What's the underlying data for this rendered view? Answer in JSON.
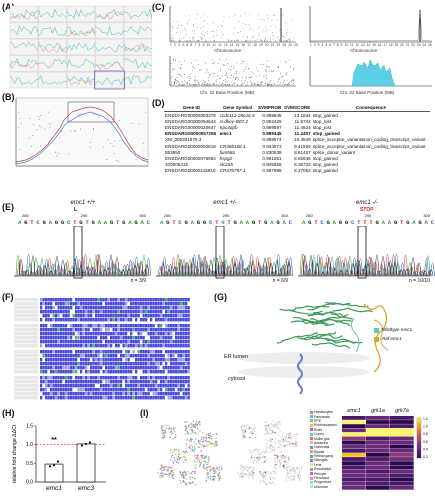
{
  "panels": {
    "a": "(A)",
    "b": "(B)",
    "c": "(C)",
    "d": "(D)",
    "e": "(E)",
    "f": "(F)",
    "g": "(G)",
    "h": "(H)",
    "i": "(I)"
  },
  "panel_c": {
    "x_label_top": "Chromosome",
    "x_label_bottom": "Chr. 22 Base Position (MB)",
    "y_label_left": "EE⁶",
    "y_label_right": "EE⁶ (Loess fit)",
    "chromosomes": [
      "1",
      "2",
      "3",
      "4",
      "5",
      "6",
      "7",
      "8",
      "9",
      "10",
      "11",
      "12",
      "13",
      "14",
      "15",
      "16",
      "17",
      "18",
      "19",
      "20",
      "21",
      "22",
      "23",
      "24",
      "25"
    ],
    "bottom_ticks": [
      "10",
      "20",
      "30",
      "40"
    ],
    "left_y_ticks": [
      "0.6",
      "0.4",
      "0.2",
      "0"
    ],
    "right_y_ticks": [
      "0.1",
      "0"
    ]
  },
  "panel_d": {
    "headers": [
      "Gene ID",
      "Gene Symbol",
      "SVMPROB",
      "SVMSCORE",
      "Consequence"
    ],
    "rows": [
      [
        "ENSDARG00000093376",
        "ccdc112-28e16.5",
        "0.989845",
        "13.1834",
        "stop_gained"
      ],
      [
        "ENSDARG00000094644",
        "si:dkey-68l7.2",
        "0.992429",
        "11.9742",
        "stop_lost"
      ],
      [
        "ENSDARG00000020647",
        "trpc4apb",
        "0.989597",
        "11.4624",
        "stop_lost"
      ],
      [
        "ENSDARG00000057255",
        "emc1",
        "0.989445",
        "11.2407",
        "stop_gained"
      ],
      [
        "XM_009301879.3",
        "",
        "0.989574",
        "10.4549",
        "splice_acceptor_variant&non_coding_transcript_variant"
      ],
      [
        "ENSDARG00000092818",
        "CR388168.1",
        "0.934973",
        "9.41926",
        "splice_acceptor_variant&non_coding_transcript_variant"
      ],
      [
        "553650",
        "fam58a",
        "0.830539",
        "8.81457",
        "splice_donor_variant"
      ],
      [
        "ENSDARG00000076564",
        "hspg2",
        "0.991561",
        "8.65646",
        "stop_gained"
      ],
      [
        "100006415",
        "slc2a5",
        "0.945658",
        "8.35733",
        "stop_gained"
      ],
      [
        "ENSDARG00000115810",
        "CR376797.1",
        "0.987886",
        "8.27052",
        "stop_gained"
      ]
    ],
    "highlight_row": 3
  },
  "panel_e": {
    "genotypes": [
      "emc1 +/+",
      "emc1 +/-",
      "emc1 -/-"
    ],
    "seq_wt": "AGTCGAGGCT G TGAAGTGAGAC",
    "seq_het": "AGTCGAGGCT N TGAAGTGAGAC",
    "seq_hom": "AGTCGAGGCT T TGAAGTGAGAC",
    "pos_labels": [
      "280",
      "290",
      "300"
    ],
    "aa_wt": "L",
    "aa_mut": "STOP",
    "counts": [
      "n = 3/9",
      "n = 6/9",
      "n = 10/10"
    ]
  },
  "panel_g": {
    "legend": [
      "Wildtype emc1",
      "Raf emc1"
    ],
    "legend_colors": [
      "#6cc3a6",
      "#d4a738"
    ],
    "labels": [
      "ER lumen",
      "cytosol"
    ]
  },
  "panel_i": {
    "clusters": [
      "Hepatocytes",
      "Pancreatic",
      "RPE",
      "Photoreceptors",
      "Rods",
      "Cones",
      "Muller glia",
      "Amacrine",
      "Horizontal",
      "Bipolar",
      "Retinal gang.",
      "Microglia",
      "Lens",
      "Endothelial",
      "Pericyte",
      "Fibroblast",
      "Progenitors",
      "Unknown"
    ],
    "genes": [
      "emc1",
      "grk1a",
      "grk7a"
    ],
    "colorbar_ticks": [
      "1.2",
      "1.0",
      "0.8",
      "0.6",
      "0.4",
      "0.2"
    ]
  },
  "chart_data": [
    {
      "type": "bar",
      "panel": "H",
      "categories": [
        "emc1",
        "emc3"
      ],
      "values": [
        0.48,
        1.02
      ],
      "ylabel": "relative fold change ΔΔCt",
      "yticks": [
        "1.5",
        "1.0",
        "0.5",
        "0.0"
      ],
      "ylim": [
        0,
        1.5
      ],
      "reference_line": 1.0,
      "annotation": "**",
      "points": [
        [
          0.42,
          0.45,
          0.55
        ],
        [
          0.98,
          1.02,
          1.06
        ]
      ]
    }
  ]
}
